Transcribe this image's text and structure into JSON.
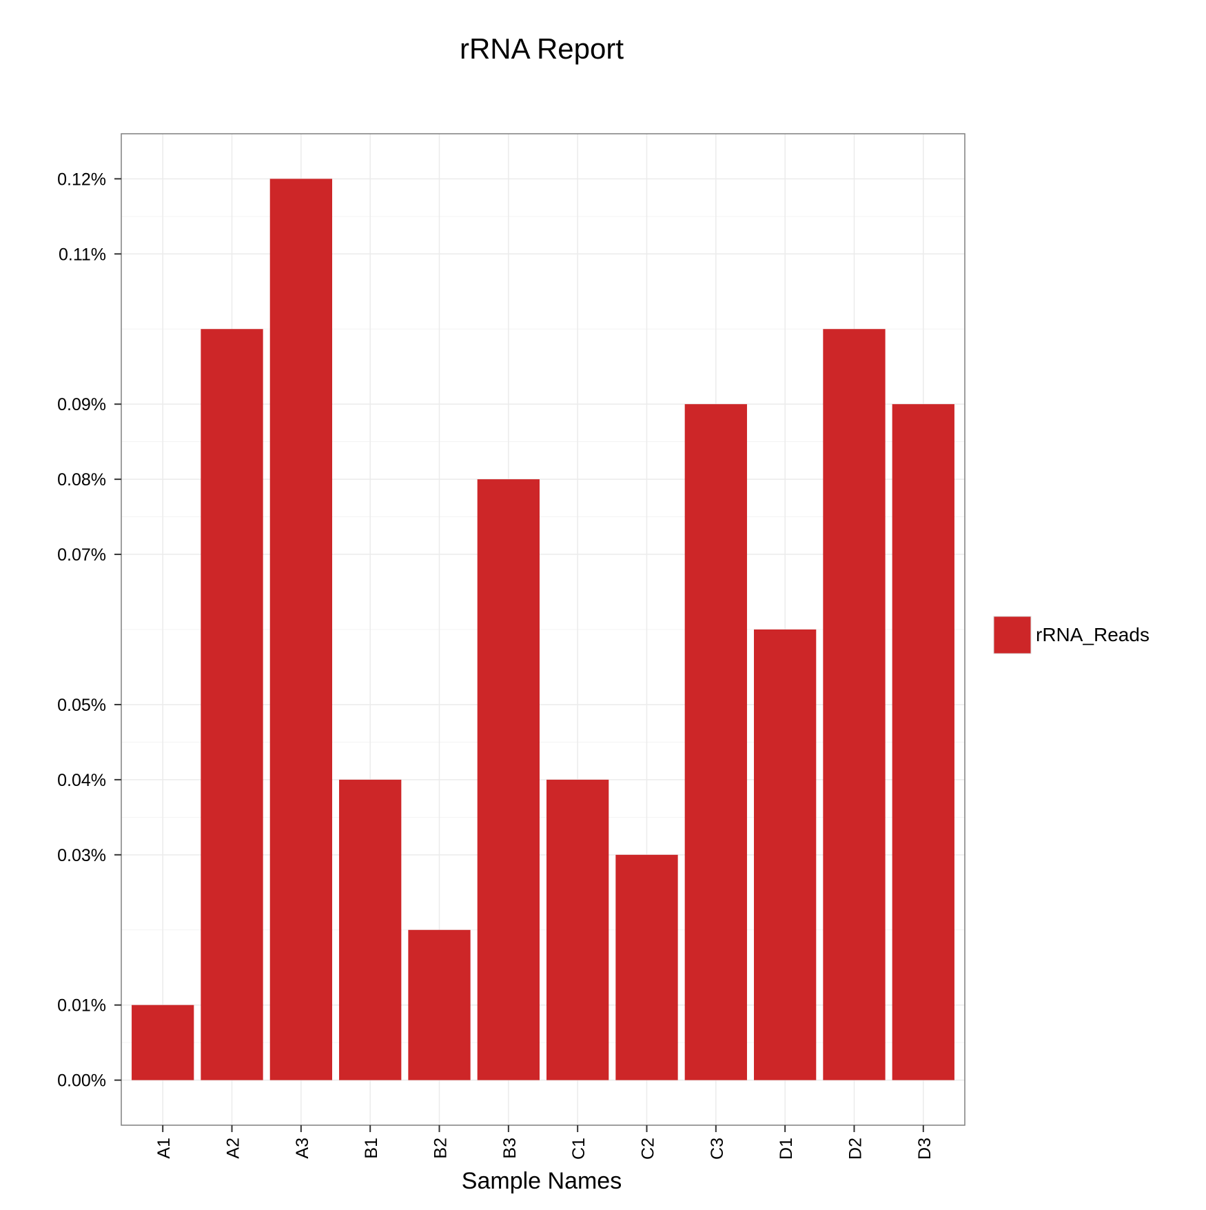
{
  "chart_data": {
    "type": "bar",
    "title": "rRNA Report",
    "xlabel": "Sample Names",
    "ylabel": "",
    "categories": [
      "A1",
      "A2",
      "A3",
      "B1",
      "B2",
      "B3",
      "C1",
      "C2",
      "C3",
      "D1",
      "D2",
      "D3"
    ],
    "series": [
      {
        "name": "rRNA_Reads",
        "color": "#cd2628",
        "values": [
          0.01,
          0.1,
          0.12,
          0.04,
          0.02,
          0.08,
          0.04,
          0.03,
          0.09,
          0.06,
          0.1,
          0.09
        ]
      }
    ],
    "y_ticks": [
      0.0,
      0.01,
      0.03,
      0.04,
      0.05,
      0.07,
      0.08,
      0.09,
      0.11,
      0.12
    ],
    "y_tick_labels": [
      "0.00%",
      "0.01%",
      "0.03%",
      "0.04%",
      "0.05%",
      "0.07%",
      "0.08%",
      "0.09%",
      "0.11%",
      "0.12%"
    ],
    "ylim": [
      -0.006,
      0.126
    ],
    "grid": true,
    "legend_position": "right",
    "panel_background": "#ffffff",
    "grid_color": "#ebebeb",
    "border_color": "#7f7f7f"
  }
}
